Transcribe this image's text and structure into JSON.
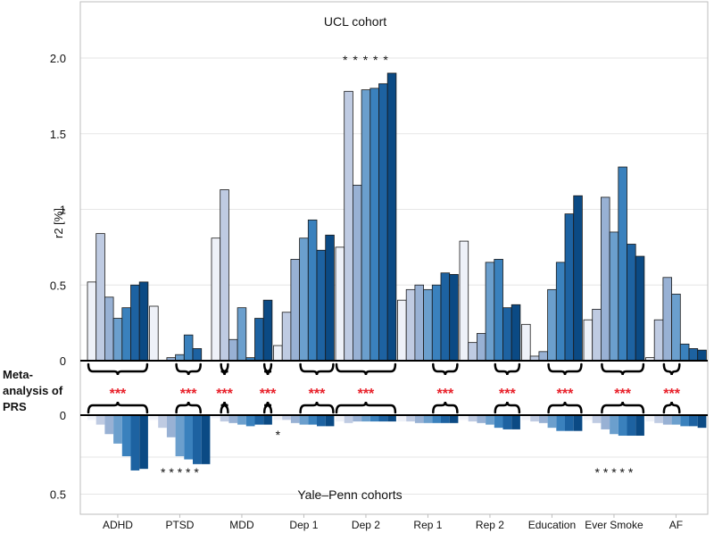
{
  "chart_data": {
    "type": "bar",
    "title_top": "UCL cohort",
    "title_bottom": "Yale–Penn cohorts",
    "ylabel": "r2 [%]",
    "meta_label_lines": [
      "Meta-",
      "analysis of",
      "PRS"
    ],
    "top_panel": {
      "ylim": [
        0,
        2.2
      ],
      "yticks": [
        {
          "value": 0,
          "label": "0"
        },
        {
          "value": 0.5,
          "label": "0.5"
        },
        {
          "value": 1.0,
          "label": "1"
        },
        {
          "value": 1.5,
          "label": "1.5"
        },
        {
          "value": 2.0,
          "label": "2.0"
        }
      ]
    },
    "bottom_panel": {
      "ylim": [
        0,
        0.6
      ],
      "yticks": [
        {
          "value": 0,
          "label": "0"
        },
        {
          "value": 0.5,
          "label": "0.5"
        }
      ]
    },
    "series_colors": [
      "#eef1f8",
      "#bfcbe2",
      "#98b1d4",
      "#6b9fcd",
      "#3a81bd",
      "#1d62a1",
      "#0b4a84"
    ],
    "categories": [
      "ADHD",
      "PTSD",
      "MDD",
      "Dep 1",
      "Dep 2",
      "Rep 1",
      "Rep 2",
      "Education",
      "Ever Smoke",
      "AF"
    ],
    "ucl": [
      [
        0.52,
        0.84,
        0.42,
        0.28,
        0.35,
        0.5,
        0.52
      ],
      [
        0.36,
        0.0,
        0.02,
        0.04,
        0.17,
        0.08,
        0.0
      ],
      [
        0.81,
        1.13,
        0.14,
        0.35,
        0.02,
        0.28,
        0.4
      ],
      [
        0.1,
        0.32,
        0.67,
        0.81,
        0.93,
        0.73,
        0.83
      ],
      [
        0.75,
        1.78,
        1.16,
        1.79,
        1.8,
        1.83,
        1.9
      ],
      [
        0.4,
        0.47,
        0.5,
        0.47,
        0.5,
        0.58,
        0.57
      ],
      [
        0.79,
        0.12,
        0.18,
        0.65,
        0.67,
        0.35,
        0.37
      ],
      [
        0.24,
        0.03,
        0.06,
        0.47,
        0.65,
        0.97,
        1.09
      ],
      [
        0.27,
        0.34,
        1.08,
        0.85,
        1.28,
        0.77,
        0.69
      ],
      [
        0.02,
        0.27,
        0.55,
        0.44,
        0.11,
        0.08,
        0.07
      ]
    ],
    "yale_penn": [
      [
        0.03,
        0.06,
        0.12,
        0.18,
        0.26,
        0.35,
        0.34
      ],
      [
        0.03,
        0.08,
        0.14,
        0.26,
        0.28,
        0.31,
        0.31
      ],
      [
        0.02,
        0.04,
        0.05,
        0.06,
        0.07,
        0.06,
        0.06
      ],
      [
        0.03,
        0.03,
        0.05,
        0.06,
        0.06,
        0.07,
        0.07
      ],
      [
        0.04,
        0.05,
        0.04,
        0.04,
        0.04,
        0.04,
        0.04
      ],
      [
        0.04,
        0.04,
        0.05,
        0.05,
        0.05,
        0.05,
        0.05
      ],
      [
        0.03,
        0.04,
        0.05,
        0.06,
        0.08,
        0.09,
        0.09
      ],
      [
        0.03,
        0.04,
        0.05,
        0.08,
        0.1,
        0.1,
        0.1
      ],
      [
        0.03,
        0.05,
        0.09,
        0.12,
        0.13,
        0.13,
        0.13
      ],
      [
        0.04,
        0.05,
        0.06,
        0.06,
        0.07,
        0.07,
        0.08
      ]
    ],
    "ucl_stars": [
      {
        "category": "Dep 2",
        "text": "*  * * * *"
      }
    ],
    "yale_stars": [
      {
        "category": "Dep 1",
        "text": "*"
      },
      {
        "category": "PTSD",
        "text": "* * * * *"
      },
      {
        "category": "Ever Smoke",
        "text": "* * * * *"
      }
    ],
    "meta_stars": "***",
    "meta_brackets": [
      {
        "category": "ADHD",
        "from": 0,
        "to": 6
      },
      {
        "category": "PTSD",
        "from": 3,
        "to": 5
      },
      {
        "category": "MDD",
        "from": 1,
        "to": 1
      },
      {
        "category": "MDD",
        "from": 6,
        "to": 6
      },
      {
        "category": "Dep 1",
        "from": 3,
        "to": 6
      },
      {
        "category": "Dep 2",
        "from": 0,
        "to": 6
      },
      {
        "category": "Rep 1",
        "from": 4,
        "to": 6
      },
      {
        "category": "Rep 2",
        "from": 4,
        "to": 6
      },
      {
        "category": "Education",
        "from": 3,
        "to": 6
      },
      {
        "category": "Ever Smoke",
        "from": 2,
        "to": 6
      },
      {
        "category": "AF",
        "from": 2,
        "to": 3
      }
    ]
  }
}
